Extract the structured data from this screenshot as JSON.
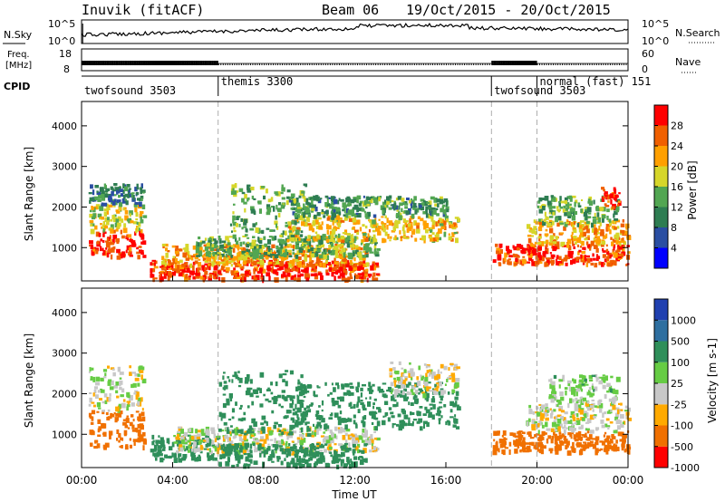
{
  "header": {
    "title": "Inuvik (fitACF)",
    "beam": "Beam 06",
    "date_range": "19/Oct/2015 - 20/Oct/2015"
  },
  "strip_nsky": {
    "left_label": "N.Sky",
    "left_ticks": [
      "10^5",
      "10^0"
    ],
    "right_label": "N.Search",
    "right_ticks": [
      "10^5",
      "10^0"
    ]
  },
  "strip_freq": {
    "left_label_1": "Freq.",
    "left_label_2": "[MHz]",
    "left_ticks": [
      "18",
      "8"
    ],
    "right_label": "Nave",
    "right_ticks": [
      "60",
      "0"
    ]
  },
  "strip_cpid": {
    "label": "CPID",
    "segments": [
      {
        "name": "twofsound 3503",
        "start_hour": 0
      },
      {
        "name": "themis 3300",
        "start_hour": 6
      },
      {
        "name": "twofsound 3503",
        "start_hour": 18
      },
      {
        "name": "normal (fast) 151",
        "start_hour": 20
      }
    ]
  },
  "power_panel": {
    "ylabel": "Slant Range [km]",
    "yticks": [
      "1000",
      "2000",
      "3000",
      "4000"
    ],
    "colorbar_label": "Power [dB]",
    "colorbar_ticks": [
      "4",
      "8",
      "12",
      "16",
      "20",
      "24",
      "28"
    ],
    "colors": [
      "#0000ff",
      "#2a4ea2",
      "#2e7d52",
      "#52a652",
      "#d6d62a",
      "#ffa000",
      "#f06000",
      "#ff0000"
    ]
  },
  "velocity_panel": {
    "ylabel": "Slant Range [km]",
    "yticks": [
      "1000",
      "2000",
      "3000",
      "4000"
    ],
    "colorbar_label": "Velocity [m s-1]",
    "colorbar_ticks": [
      "1000",
      "500",
      "100",
      "25",
      "-25",
      "-100",
      "-500",
      "-1000"
    ],
    "colors": [
      "#2040b0",
      "#2e6fa0",
      "#2f8f5a",
      "#66cc44",
      "#c8c8c8",
      "#ffaa00",
      "#f07000",
      "#ff0000"
    ]
  },
  "xaxis": {
    "ticks": [
      "00:00",
      "04:00",
      "08:00",
      "12:00",
      "16:00",
      "20:00",
      "00:00"
    ],
    "label": "Time UT"
  },
  "chart_data": {
    "type": "heatmap",
    "x_range_hours": [
      0,
      24
    ],
    "y_range_km": [
      180,
      4600
    ],
    "vertical_markers_hours": [
      6,
      18,
      20
    ],
    "power_blobs": [
      {
        "t0": 0.3,
        "t1": 2.7,
        "r0": 800,
        "r1": 1450,
        "db": 28
      },
      {
        "t0": 0.3,
        "t1": 2.7,
        "r0": 1450,
        "r1": 2100,
        "db": 18
      },
      {
        "t0": 0.3,
        "t1": 2.7,
        "r0": 2100,
        "r1": 2600,
        "db": 10
      },
      {
        "t0": 3.0,
        "t1": 13.0,
        "r0": 250,
        "r1": 700,
        "db": 28
      },
      {
        "t0": 3.5,
        "t1": 12.5,
        "r0": 600,
        "r1": 1100,
        "db": 22
      },
      {
        "t0": 5.0,
        "t1": 13.0,
        "r0": 800,
        "r1": 1300,
        "db": 14
      },
      {
        "t0": 9.0,
        "t1": 16.5,
        "r0": 1200,
        "r1": 1800,
        "db": 20
      },
      {
        "t0": 9.0,
        "t1": 16.0,
        "r0": 1800,
        "r1": 2300,
        "db": 12
      },
      {
        "t0": 6.5,
        "t1": 10.0,
        "r0": 1300,
        "r1": 2600,
        "db": 14
      },
      {
        "t0": 18.0,
        "t1": 24.0,
        "r0": 600,
        "r1": 1100,
        "db": 28
      },
      {
        "t0": 19.5,
        "t1": 24.0,
        "r0": 1100,
        "r1": 1700,
        "db": 22
      },
      {
        "t0": 20.0,
        "t1": 23.5,
        "r0": 1600,
        "r1": 2300,
        "db": 14
      },
      {
        "t0": 22.8,
        "t1": 23.6,
        "r0": 2000,
        "r1": 2500,
        "db": 28
      }
    ],
    "velocity_blobs": [
      {
        "t0": 0.3,
        "t1": 2.7,
        "r0": 700,
        "r1": 1600,
        "v": -300
      },
      {
        "t0": 0.3,
        "t1": 2.7,
        "r0": 1600,
        "r1": 2700,
        "v": 0
      },
      {
        "t0": 3.0,
        "t1": 6.0,
        "r0": 400,
        "r1": 1000,
        "v": 200
      },
      {
        "t0": 4.0,
        "t1": 13.0,
        "r0": 600,
        "r1": 1200,
        "v": 0
      },
      {
        "t0": 6.0,
        "t1": 12.5,
        "r0": 250,
        "r1": 800,
        "v": 200
      },
      {
        "t0": 6.0,
        "t1": 10.0,
        "r0": 1000,
        "r1": 2600,
        "v": 300
      },
      {
        "t0": 9.0,
        "t1": 16.5,
        "r0": 1200,
        "r1": 2300,
        "v": 300
      },
      {
        "t0": 13.5,
        "t1": 16.5,
        "r0": 2000,
        "r1": 2800,
        "v": 0
      },
      {
        "t0": 18.0,
        "t1": 24.0,
        "r0": 600,
        "r1": 1100,
        "v": -300
      },
      {
        "t0": 19.5,
        "t1": 24.0,
        "r0": 1100,
        "r1": 1800,
        "v": 0
      },
      {
        "t0": 20.5,
        "t1": 23.5,
        "r0": 1800,
        "r1": 2500,
        "v": 50
      }
    ]
  }
}
